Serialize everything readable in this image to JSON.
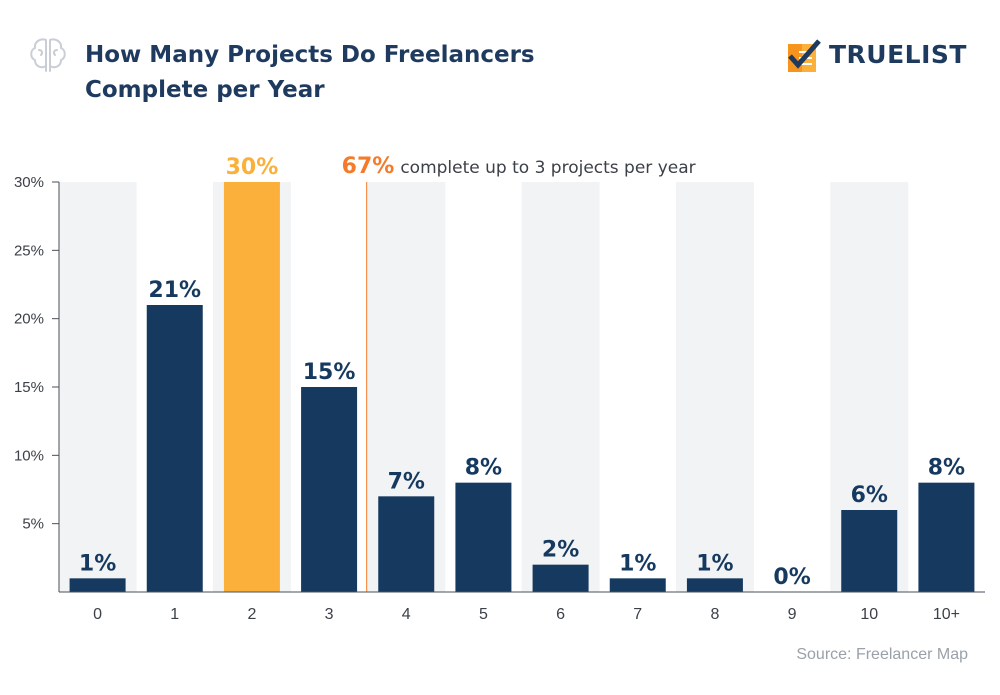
{
  "header": {
    "title_line1": "How Many Projects Do Freelancers",
    "title_line2": "Complete per Year",
    "logo_text": "TRUELIST",
    "icon": "brain-icon",
    "logo_icon": "checklist-icon"
  },
  "chart_data": {
    "type": "bar",
    "title": "How Many Projects Do Freelancers Complete per Year",
    "categories": [
      "0",
      "1",
      "2",
      "3",
      "4",
      "5",
      "6",
      "7",
      "8",
      "9",
      "10",
      "10+"
    ],
    "values": [
      1,
      21,
      30,
      15,
      7,
      8,
      2,
      1,
      1,
      0,
      6,
      8
    ],
    "value_labels": [
      "1%",
      "21%",
      "30%",
      "15%",
      "7%",
      "8%",
      "2%",
      "1%",
      "1%",
      "0%",
      "6%",
      "8%"
    ],
    "highlight_index": 2,
    "ylim": [
      0,
      30
    ],
    "yticks": [
      5,
      10,
      15,
      20,
      25,
      30
    ],
    "ytick_labels": [
      "5%",
      "10%",
      "15%",
      "20%",
      "25%",
      "30%"
    ],
    "xlabel": "",
    "ylabel": "",
    "grid": false,
    "annotation": {
      "value": "67%",
      "text": "complete up to 3 projects per year",
      "after_category": "3"
    },
    "colors": {
      "bar": "#163a5f",
      "highlight": "#fbb03b",
      "annotation": "#f47b2a",
      "band": "#f2f3f5"
    }
  },
  "footer": {
    "source": "Source: Freelancer Map"
  }
}
